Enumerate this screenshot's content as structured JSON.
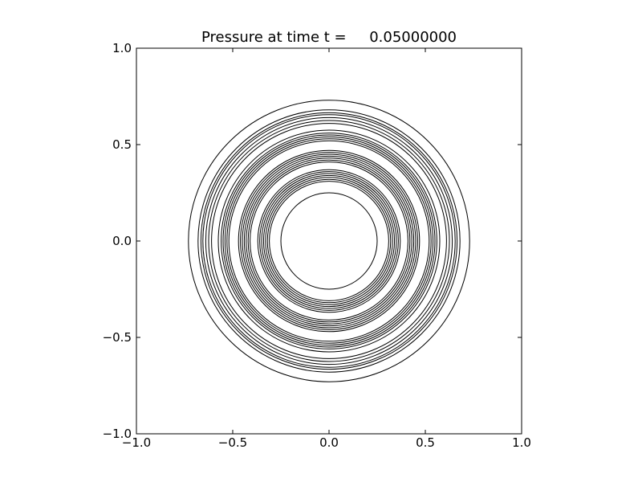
{
  "chart_data": {
    "type": "contour",
    "title": "Pressure at time t =     0.05000000",
    "xlim": [
      -1,
      1
    ],
    "ylim": [
      -1,
      1
    ],
    "xticks": [
      {
        "value": -1,
        "label": "−1.0"
      },
      {
        "value": -0.5,
        "label": "−0.5"
      },
      {
        "value": 0,
        "label": "0.0"
      },
      0.5,
      {
        "value": 1,
        "label": "1.0"
      }
    ],
    "yticks": [
      {
        "value": -1,
        "label": "−1.0"
      },
      {
        "value": -0.5,
        "label": "−0.5"
      },
      {
        "value": 0,
        "label": "0.0"
      },
      0.5,
      {
        "value": 1,
        "label": "1.0"
      }
    ],
    "color": "#000000",
    "contour_radii": [
      0.73,
      0.68,
      0.665,
      0.655,
      0.64,
      0.625,
      0.61,
      0.575,
      0.56,
      0.55,
      0.54,
      0.53,
      0.52,
      0.47,
      0.46,
      0.45,
      0.44,
      0.43,
      0.42,
      0.41,
      0.37,
      0.36,
      0.35,
      0.34,
      0.33,
      0.32,
      0.31,
      0.25
    ]
  }
}
